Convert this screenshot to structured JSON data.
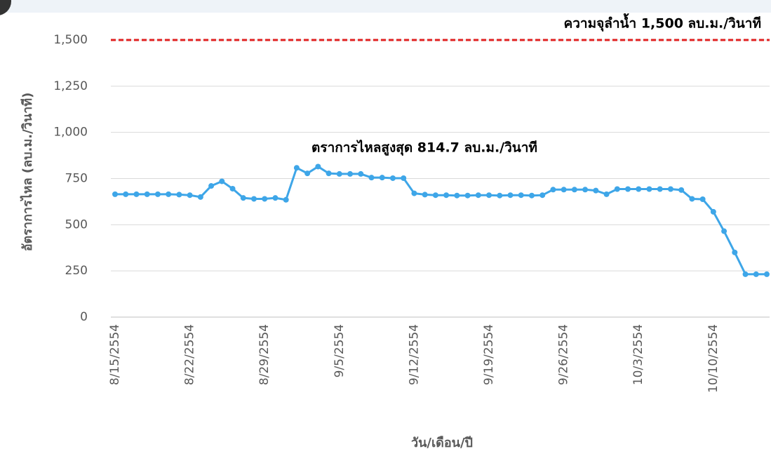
{
  "chart_data": {
    "type": "line",
    "x_label": "วัน/เดือน/ปี",
    "y_label": "อัตราการไหล  (ลบ.ม./วินาที)",
    "categories": [
      "8/15/2554",
      null,
      null,
      null,
      null,
      null,
      null,
      "8/22/2554",
      null,
      null,
      null,
      null,
      null,
      null,
      "8/29/2554",
      null,
      null,
      null,
      null,
      null,
      null,
      "9/5/2554",
      null,
      null,
      null,
      null,
      null,
      null,
      "9/12/2554",
      null,
      null,
      null,
      null,
      null,
      null,
      "9/19/2554",
      null,
      null,
      null,
      null,
      null,
      null,
      "9/26/2554",
      null,
      null,
      null,
      null,
      null,
      null,
      "10/3/2554",
      null,
      null,
      null,
      null,
      null,
      null,
      "10/10/2554",
      null,
      null,
      null,
      null,
      null
    ],
    "series": [
      {
        "name": "อัตราการไหล",
        "color": "#3ea6e8",
        "values": [
          665,
          665,
          665,
          665,
          665,
          665,
          663,
          660,
          650,
          710,
          735,
          695,
          645,
          640,
          640,
          645,
          635,
          808,
          778,
          814.7,
          778,
          775,
          775,
          775,
          755,
          755,
          752,
          752,
          670,
          663,
          660,
          660,
          658,
          658,
          660,
          660,
          658,
          660,
          660,
          658,
          660,
          690,
          690,
          690,
          690,
          685,
          665,
          693,
          693,
          693,
          693,
          693,
          693,
          688,
          640,
          638,
          570,
          465,
          350,
          232,
          232,
          232
        ]
      }
    ],
    "ylim": [
      0,
      1500
    ],
    "yticks": [
      0,
      250,
      500,
      750,
      {
        "value": 1000,
        "label": "1,000"
      },
      {
        "value": 1250,
        "label": "1,250"
      },
      {
        "value": 1500,
        "label": "1,500"
      }
    ],
    "grid": true,
    "reference_line": {
      "value": 1500,
      "color": "#e02020",
      "label": "ความจุลำน้ำ 1,500 ลบ.ม./วินาที"
    },
    "annotations": [
      {
        "text": "ตราการไหลสูงสุด 814.7 ลบ.ม./วินาที",
        "at": 19
      }
    ]
  }
}
